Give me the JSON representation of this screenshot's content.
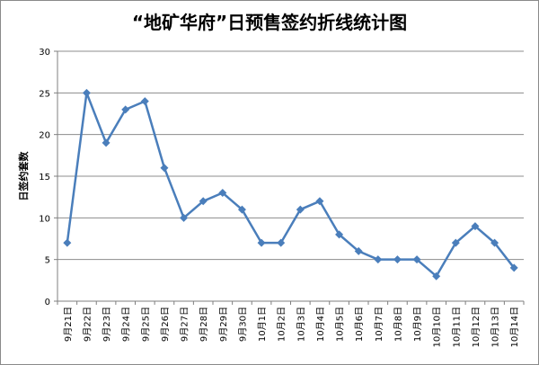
{
  "chart_data": {
    "type": "line",
    "title": "“地矿华府”日预售签约折线统计图",
    "xlabel": "",
    "ylabel": "日签约套数",
    "ylim": [
      0,
      30
    ],
    "yticks": [
      0,
      5,
      10,
      15,
      20,
      25,
      30
    ],
    "grid": true,
    "legend": "none",
    "categories": [
      "9月21日",
      "9月22日",
      "9月23日",
      "9月24日",
      "9月25日",
      "9月26日",
      "9月27日",
      "9月28日",
      "9月29日",
      "9月30日",
      "10月1日",
      "10月2日",
      "10月3日",
      "10月4日",
      "10月5日",
      "10月6日",
      "10月7日",
      "10月8日",
      "10月9日",
      "10月10日",
      "10月11日",
      "10月12日",
      "10月13日",
      "10月14日"
    ],
    "series": [
      {
        "values": [
          7,
          25,
          19,
          23,
          24,
          16,
          10,
          12,
          13,
          11,
          7,
          7,
          11,
          12,
          8,
          6,
          5,
          5,
          5,
          3,
          7,
          9,
          7,
          4
        ],
        "color": "#4a7ebb"
      }
    ]
  }
}
